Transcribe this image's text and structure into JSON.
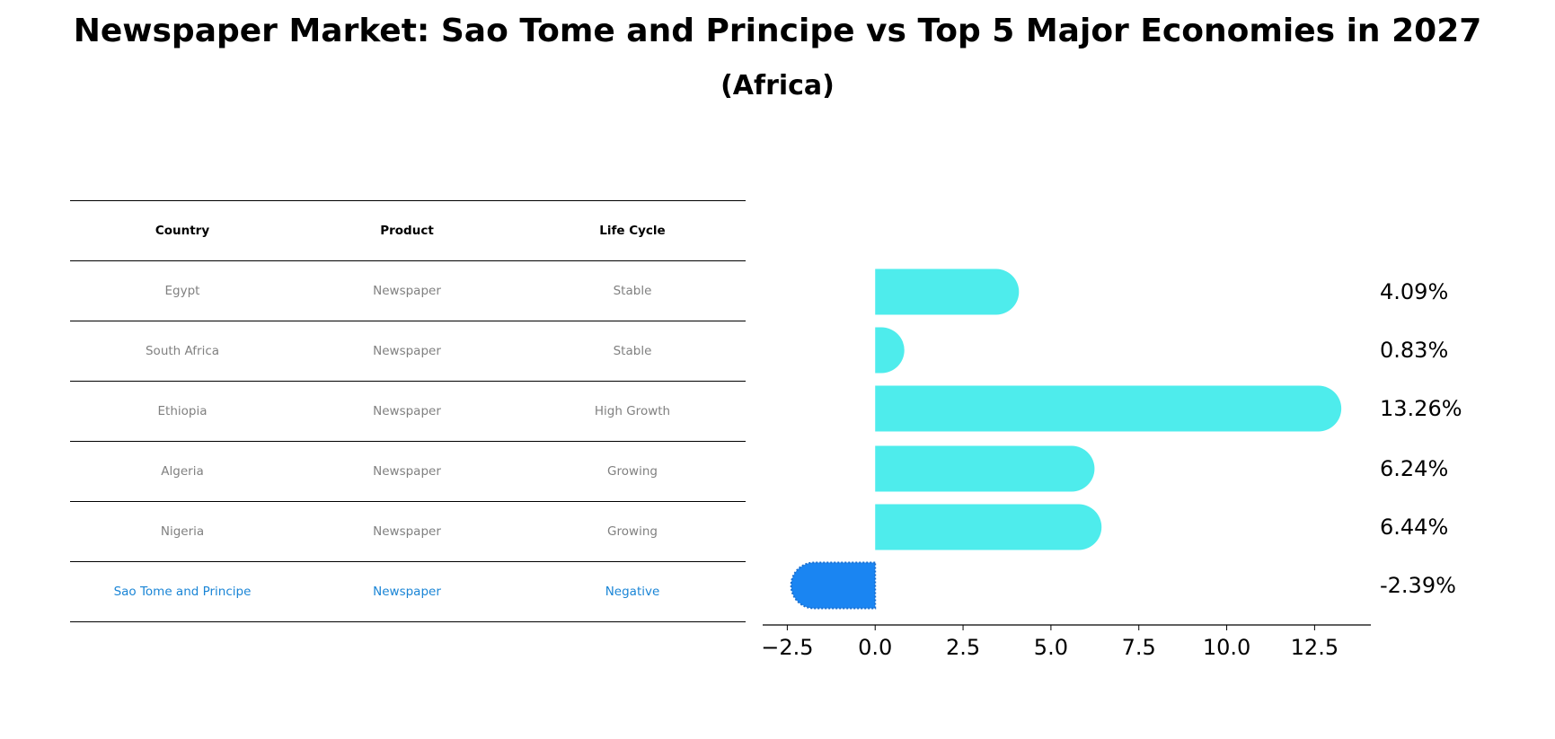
{
  "title": "Newspaper Market: Sao Tome and Principe vs Top 5 Major Economies in 2027",
  "subtitle": "(Africa)",
  "table": {
    "headers": [
      "Country",
      "Product",
      "Life Cycle"
    ],
    "rows": [
      [
        "Egypt",
        "Newspaper",
        "Stable"
      ],
      [
        "South Africa",
        "Newspaper",
        "Stable"
      ],
      [
        "Ethiopia",
        "Newspaper",
        "High Growth"
      ],
      [
        "Algeria",
        "Newspaper",
        "Growing"
      ],
      [
        "Nigeria",
        "Newspaper",
        "Growing"
      ],
      [
        "Sao Tome and Principe",
        "Newspaper",
        "Negative"
      ]
    ]
  },
  "colors": {
    "bar": "#4eecec",
    "highlight": "#1a85f2",
    "highlight_text": "#1a85d6",
    "muted_text": "#808080"
  },
  "chart_data": {
    "type": "bar",
    "orientation": "horizontal",
    "categories": [
      "Egypt",
      "South Africa",
      "Ethiopia",
      "Algeria",
      "Nigeria",
      "Sao Tome and Principe"
    ],
    "values": [
      4.09,
      0.83,
      13.26,
      6.24,
      6.44,
      -2.39
    ],
    "value_labels": [
      "4.09%",
      "0.83%",
      "13.26%",
      "6.24%",
      "6.44%",
      "-2.39%"
    ],
    "highlight_category": "Sao Tome and Principe",
    "xlim": [
      -3.2,
      14.1
    ],
    "xticks": [
      -2.5,
      0.0,
      2.5,
      5.0,
      7.5,
      10.0,
      12.5
    ],
    "xtick_labels": [
      "−2.5",
      "0.0",
      "2.5",
      "5.0",
      "7.5",
      "10.0",
      "12.5"
    ],
    "grid": false
  }
}
